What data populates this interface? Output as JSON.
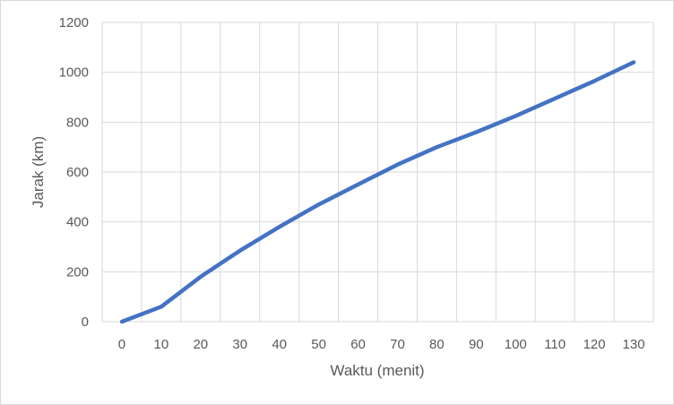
{
  "chart_data": {
    "type": "line",
    "title": "",
    "xlabel": "Waktu (menit)",
    "ylabel": "Jarak (km)",
    "x": [
      0,
      10,
      20,
      30,
      40,
      50,
      60,
      70,
      80,
      90,
      100,
      110,
      120,
      130
    ],
    "series": [
      {
        "values": [
          0,
          60,
          180,
          285,
          380,
          470,
          550,
          630,
          700,
          760,
          825,
          895,
          965,
          1040
        ]
      }
    ],
    "xlim": [
      0,
      130
    ],
    "ylim": [
      0,
      1200
    ],
    "x_ticks": [
      "0",
      "10",
      "20",
      "30",
      "40",
      "50",
      "60",
      "70",
      "80",
      "90",
      "100",
      "110",
      "120",
      "130"
    ],
    "y_ticks": [
      "0",
      "200",
      "400",
      "600",
      "800",
      "1000",
      "1200"
    ],
    "grid": true,
    "legend": "none",
    "colors": {
      "line": "#4472c4",
      "grid": "#d9d9d9",
      "text": "#595959"
    }
  }
}
